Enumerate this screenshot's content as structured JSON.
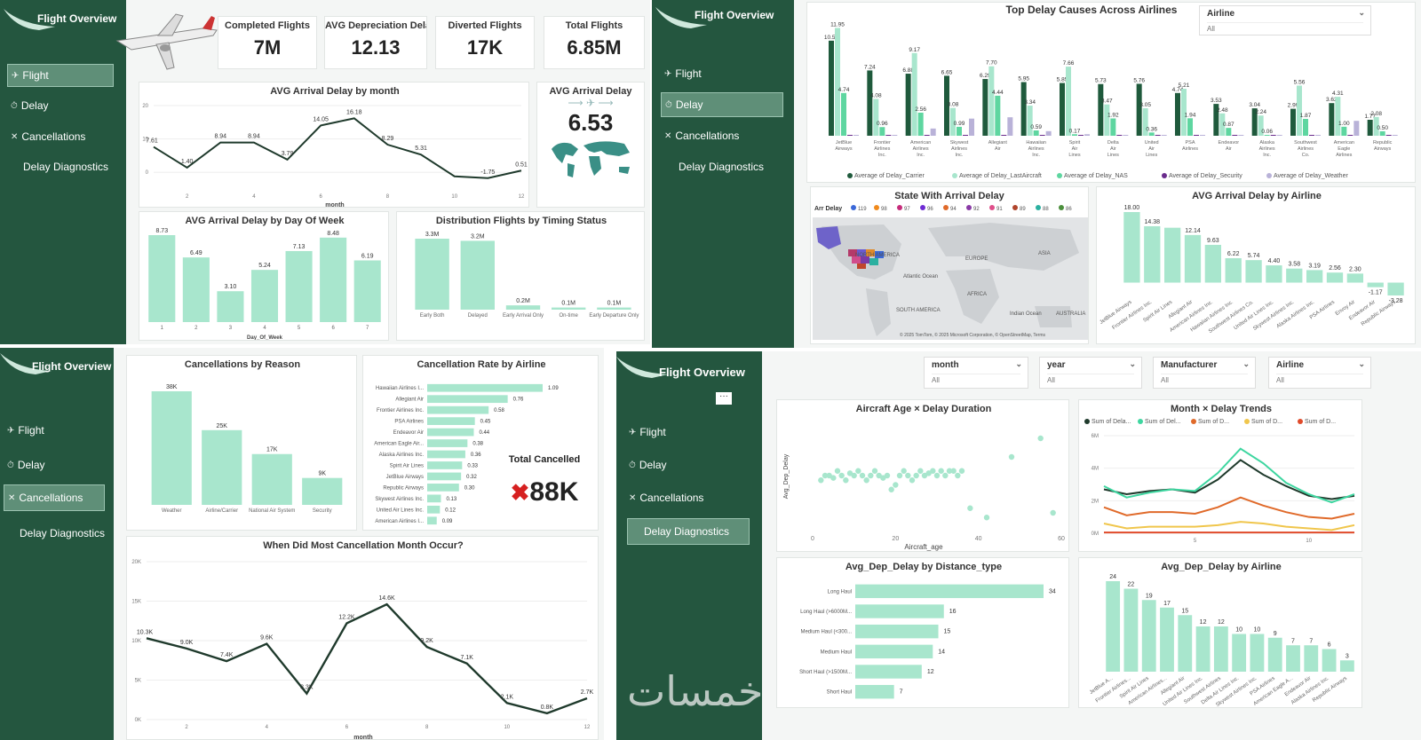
{
  "brand": {
    "title": "Flight Overview"
  },
  "nav_items": [
    "Flight",
    "Delay",
    "Cancellations",
    "Delay Diagnostics"
  ],
  "colors": {
    "sidebar": "#24563f",
    "bar": "#a8e6cd",
    "line": "#1f3a2c",
    "accent_red": "#d62020"
  },
  "p1": {
    "kpis": [
      {
        "label": "Completed Flights",
        "value": "7M"
      },
      {
        "label": "AVG Depreciation Delay",
        "value": "12.13"
      },
      {
        "label": "Diverted Flights",
        "value": "17K"
      },
      {
        "label": "Total Flights",
        "value": "6.85M"
      }
    ],
    "avg_card": {
      "title": "AVG Arrival Delay",
      "value": "6.53"
    }
  },
  "p2": {
    "slicer": {
      "label": "Airline",
      "value": "All"
    },
    "map": {
      "legend_title": "Arr Delay",
      "labels": [
        "NORTH AMERICA",
        "EUROPE",
        "ASIA",
        "AFRICA",
        "SOUTH AMERICA",
        "Atlantic Ocean",
        "Indian Ocean",
        "AUSTRALIA"
      ],
      "footer": "© 2025 TomTom, © 2025 Microsoft Corporation, © OpenStreetMap, Terms"
    }
  },
  "p3": {
    "total_title": "Total Cancelled",
    "total_value": "88K"
  },
  "p4": {
    "slicers": [
      {
        "label": "month",
        "value": "All"
      },
      {
        "label": "year",
        "value": "All"
      },
      {
        "label": "Manufacturer",
        "value": "All"
      },
      {
        "label": "Airline",
        "value": "All"
      }
    ]
  },
  "watermark": "خمسات",
  "chart_data": [
    {
      "id": "p1_month",
      "type": "line",
      "title": "AVG Arrival Delay by month",
      "xlabel": "month",
      "x": [
        1,
        2,
        3,
        4,
        5,
        6,
        7,
        8,
        9,
        10,
        11,
        12
      ],
      "y": [
        7.61,
        1.4,
        8.94,
        8.94,
        3.79,
        14.05,
        16.18,
        8.29,
        5.31,
        -1.21,
        -1.75,
        0.51
      ],
      "labels": [
        "7.61",
        "1.40",
        "8.94",
        "8.94",
        "3.79",
        "14.05",
        "16.18",
        "8.29",
        "5.31",
        "",
        "-1.75",
        "0.51"
      ],
      "ticks": [
        "2",
        "4",
        "6",
        "8",
        "10",
        "12"
      ],
      "yticks": [
        "0",
        "10",
        "20"
      ],
      "ylim": [
        -5,
        20
      ]
    },
    {
      "id": "p1_dow",
      "type": "bar",
      "title": "AVG Arrival Delay by Day Of Week",
      "xlabel": "Day_Of_Week",
      "categories": [
        "1",
        "2",
        "3",
        "4",
        "5",
        "6",
        "7"
      ],
      "values": [
        8.73,
        6.49,
        3.1,
        5.24,
        7.13,
        8.48,
        6.19
      ],
      "labels": [
        "8.73",
        "6.49",
        "3.10",
        "5.24",
        "7.13",
        "8.48",
        "6.19"
      ]
    },
    {
      "id": "p1_status",
      "type": "bar",
      "title": "Distribution Flights by Timing Status",
      "categories": [
        "Early Both",
        "Delayed",
        "Early Arrival Only",
        "On-time",
        "Early Departure Only"
      ],
      "values": [
        3.3,
        3.2,
        0.2,
        0.1,
        0.1
      ],
      "labels": [
        "3.3M",
        "3.2M",
        "0.2M",
        "0.1M",
        "0.1M"
      ]
    },
    {
      "id": "p2_causes",
      "type": "bar",
      "title": "Top Delay Causes Across Airlines",
      "categories": [
        "JetBlue Airways",
        "Frontier Airlines Inc.",
        "American Airlines Inc.",
        "Skywest Airlines Inc.",
        "Allegiant Air",
        "Hawaiian Airlines Inc.",
        "Spirit Air Lines",
        "Delta Air Lines Inc.",
        "United Air Lines Inc.",
        "PSA Airlines",
        "Endeavor Air",
        "Alaska Airlines Inc.",
        "Southwest Airlines Co.",
        "American Eagle Airlines Inc.",
        "Republic Airways"
      ],
      "series": [
        {
          "name": "Average of Delay_Carrier",
          "values": [
            10.54,
            7.24,
            6.88,
            6.65,
            6.29,
            5.95,
            5.85,
            5.73,
            5.76,
            4.74,
            3.53,
            3.04,
            2.99,
            3.62,
            1.77
          ]
        },
        {
          "name": "Average of Delay_LastAircraft",
          "values": [
            11.95,
            4.08,
            9.17,
            3.08,
            7.7,
            3.34,
            7.66,
            3.47,
            3.05,
            5.21,
            2.48,
            2.24,
            5.56,
            4.31,
            2.08
          ]
        },
        {
          "name": "Average of Delay_NAS",
          "values": [
            4.74,
            0.96,
            2.56,
            0.99,
            4.44,
            0.59,
            0.17,
            1.92,
            0.36,
            1.94,
            0.87,
            0.06,
            1.87,
            1.0,
            0.5
          ]
        },
        {
          "name": "Average of Delay_Security",
          "values": [
            0.01,
            0.03,
            0.04,
            0.03,
            0.02,
            0.01,
            0.03,
            0.01,
            0.03,
            0.02,
            0.02,
            0.01,
            0.02,
            0.02,
            0.01
          ]
        },
        {
          "name": "Average of Delay_Weather",
          "values": [
            0.01,
            0.0,
            0.8,
            1.9,
            2.05,
            0.51,
            0.17,
            0.03,
            0.0,
            0.05,
            0.0,
            0.03,
            0.02,
            1.65,
            0.01
          ]
        }
      ],
      "colors": [
        "#1f5a3c",
        "#a8e6cd",
        "#5ed6a0",
        "#6a2c8c",
        "#b9b2d8"
      ]
    },
    {
      "id": "p2_airline",
      "type": "bar",
      "title": "AVG Arrival Delay by Airline",
      "categories": [
        "JetBlue Airways",
        "Frontier Airlines Inc.",
        "Spirit Air Lines",
        "Allegiant Air",
        "American Airlines Inc.",
        "Hawaiian Airlines Inc.",
        "Southwest Airlines Co.",
        "United Air Lines Inc.",
        "Skywest Airlines Inc.",
        "Alaska Airlines Inc.",
        "PSA Airlines",
        "Envoy Air",
        "Endeavor Air",
        "Republic Airways"
      ],
      "values": [
        18.0,
        14.38,
        14.0,
        12.14,
        9.63,
        6.22,
        5.74,
        4.4,
        3.58,
        3.19,
        2.56,
        2.3,
        -1.17,
        -3.28
      ],
      "labels": [
        "18.00",
        "14.38",
        "",
        "12.14",
        "9.63",
        "6.22",
        "5.74",
        "4.40",
        "3.58",
        "3.19",
        "2.56",
        "2.30",
        "-1.17",
        "-3.28"
      ]
    },
    {
      "id": "p2_legend",
      "type": "table",
      "title": "Arr Delay",
      "values": [
        "119",
        "98",
        "97",
        "96",
        "94",
        "92",
        "91",
        "89",
        "88",
        "86"
      ],
      "colors": [
        "#3b68d8",
        "#f08a1c",
        "#c62b7a",
        "#6e2bd3",
        "#e06a2a",
        "#8a3aa6",
        "#df4e8a",
        "#b0452c",
        "#2bb0a0",
        "#4b8f3c"
      ]
    },
    {
      "id": "p3_reason",
      "type": "bar",
      "title": "Cancellations by Reason",
      "categories": [
        "Weather",
        "Airline/Carrier",
        "National Air System",
        "Security"
      ],
      "values": [
        38,
        25,
        17,
        9
      ],
      "labels": [
        "38K",
        "25K",
        "17K",
        "9K"
      ]
    },
    {
      "id": "p3_rate",
      "type": "bar",
      "orientation": "horizontal",
      "title": "Cancellation Rate by Airline",
      "categories": [
        "Hawaiian Airlines I...",
        "Allegiant Air",
        "Frontier Airlines Inc.",
        "PSA Airlines",
        "Endeavor Air",
        "American Eagle Air...",
        "Alaska Airlines Inc.",
        "Spirit Air Lines",
        "JetBlue Airways",
        "Republic Airways",
        "Skywest Airlines Inc.",
        "United Air Lines Inc.",
        "American Airlines I..."
      ],
      "values": [
        1.09,
        0.76,
        0.58,
        0.45,
        0.44,
        0.38,
        0.36,
        0.33,
        0.32,
        0.3,
        0.13,
        0.12,
        0.09
      ],
      "labels": [
        "1.09",
        "0.76",
        "0.58",
        "0.45",
        "0.44",
        "0.38",
        "0.36",
        "0.33",
        "0.32",
        "0.30",
        "0.13",
        "0.12",
        "0.09"
      ]
    },
    {
      "id": "p3_month",
      "type": "line",
      "title": "When Did Most Cancellation Month Occur?",
      "xlabel": "month",
      "x": [
        1,
        2,
        3,
        4,
        5,
        6,
        7,
        8,
        9,
        10,
        11,
        12
      ],
      "y": [
        10.3,
        9.0,
        7.4,
        9.6,
        3.3,
        12.2,
        14.6,
        9.2,
        7.1,
        2.1,
        0.8,
        2.7
      ],
      "labels": [
        "10.3K",
        "9.0K",
        "7.4K",
        "9.6K",
        "3.3K",
        "12.2K",
        "14.6K",
        "9.2K",
        "7.1K",
        "2.1K",
        "0.8K",
        "2.7K"
      ],
      "ticks": [
        "2",
        "4",
        "6",
        "8",
        "10",
        "12"
      ],
      "yticks": [
        "0K",
        "5K",
        "10K",
        "15K",
        "20K"
      ],
      "ylim": [
        0,
        20
      ]
    },
    {
      "id": "p4_scatter",
      "type": "scatter",
      "title": "Aircraft Age × Delay Duration",
      "xlabel": "Aircraft_age",
      "ylabel": "Avg_Dep_Delay",
      "ticks": [
        "0",
        "20",
        "40",
        "60"
      ],
      "x": [
        2,
        3,
        4,
        5,
        6,
        7,
        8,
        9,
        10,
        11,
        12,
        13,
        14,
        15,
        16,
        17,
        18,
        19,
        20,
        21,
        22,
        23,
        24,
        25,
        26,
        27,
        28,
        29,
        30,
        31,
        32,
        33,
        34,
        35,
        36,
        38,
        42,
        48,
        55,
        58
      ],
      "y": [
        11,
        12,
        12,
        11.5,
        13,
        12,
        11,
        12.5,
        12,
        13,
        12,
        11,
        12,
        13,
        12,
        11.5,
        12,
        9,
        10,
        12,
        13,
        12,
        11,
        12,
        13,
        12,
        12.5,
        13,
        12,
        13,
        12,
        13,
        13,
        12,
        13,
        5,
        3,
        16,
        20,
        4
      ],
      "xlim": [
        0,
        60
      ],
      "ylim": [
        0,
        24
      ]
    },
    {
      "id": "p4_trend",
      "type": "line",
      "title": "Month × Delay Trends",
      "xlabel": "",
      "yticks": [
        "0M",
        "2M",
        "4M",
        "6M"
      ],
      "ticks": [
        "5",
        "10"
      ],
      "x": [
        1,
        2,
        3,
        4,
        5,
        6,
        7,
        8,
        9,
        10,
        11,
        12
      ],
      "series": [
        {
          "name": "Sum of Dela...",
          "values": [
            2.7,
            2.4,
            2.6,
            2.7,
            2.5,
            3.3,
            4.5,
            3.6,
            2.9,
            2.3,
            2.1,
            2.3
          ]
        },
        {
          "name": "Sum of Del...",
          "values": [
            2.9,
            2.2,
            2.5,
            2.7,
            2.6,
            3.7,
            5.2,
            4.3,
            3.1,
            2.4,
            1.9,
            2.4
          ]
        },
        {
          "name": "Sum of D...",
          "values": [
            1.6,
            1.1,
            1.3,
            1.3,
            1.2,
            1.6,
            2.2,
            1.7,
            1.3,
            1.0,
            0.9,
            1.2
          ]
        },
        {
          "name": "Sum of D...",
          "values": [
            0.6,
            0.3,
            0.4,
            0.4,
            0.4,
            0.5,
            0.7,
            0.6,
            0.4,
            0.3,
            0.2,
            0.5
          ]
        },
        {
          "name": "Sum of D...",
          "values": [
            0.05,
            0.05,
            0.05,
            0.05,
            0.05,
            0.05,
            0.05,
            0.05,
            0.05,
            0.05,
            0.05,
            0.05
          ]
        }
      ],
      "colors": [
        "#1f3a2c",
        "#3ed6a0",
        "#e06a2a",
        "#f0c64c",
        "#e04a2a"
      ],
      "ylim": [
        0,
        6
      ]
    },
    {
      "id": "p4_distance",
      "type": "bar",
      "orientation": "horizontal",
      "title": "Avg_Dep_Delay by Distance_type",
      "categories": [
        "Long Haul",
        "Long Haul (>6000M...",
        "Medium Haul (<300...",
        "Medium Haul",
        "Short Haul (>1500M...",
        "Short Haul"
      ],
      "values": [
        34,
        16,
        15,
        14,
        12,
        7
      ],
      "labels": [
        "34",
        "16",
        "15",
        "14",
        "12",
        "7"
      ]
    },
    {
      "id": "p4_airline",
      "type": "bar",
      "title": "Avg_Dep_Delay by Airline",
      "categories": [
        "JetBlue A...",
        "Frontier Airlines...",
        "Spirit Air Lines",
        "American Airlines...",
        "Allegiant Air",
        "United Air Lines Inc.",
        "Southwest Airlines",
        "Delta Air Lines Inc.",
        "Skywest Airlines Inc.",
        "PSA Airlines",
        "American Eagle A...",
        "Endeavor Air",
        "Alaska Airlines Inc.",
        "Republic Airways"
      ],
      "values": [
        24,
        22,
        19,
        17,
        15,
        12,
        12,
        10,
        10,
        9,
        7,
        7,
        6,
        3
      ],
      "labels": [
        "24",
        "22",
        "19",
        "17",
        "15",
        "12",
        "12",
        "10",
        "10",
        "9",
        "7",
        "7",
        "6",
        "3"
      ]
    }
  ]
}
